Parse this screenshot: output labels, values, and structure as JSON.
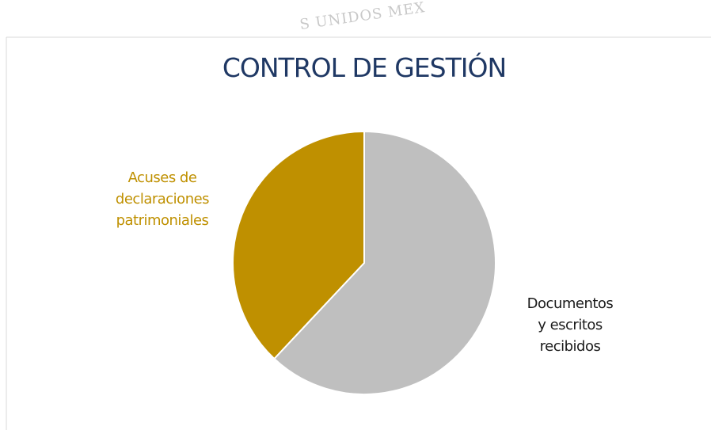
{
  "watermark": "S UNIDOS MEX",
  "chart_data": {
    "type": "pie",
    "title": "CONTROL DE GESTIÓN",
    "categories": [
      "Documentos\ny escritos\nrecibidos",
      "Acuses de\ndeclaraciones\npatrimoniales"
    ],
    "values": [
      62,
      38
    ],
    "colors": [
      "#bfbfbf",
      "#bf9000"
    ],
    "label_colors": [
      "#1a1a1a",
      "#bf9000"
    ]
  }
}
